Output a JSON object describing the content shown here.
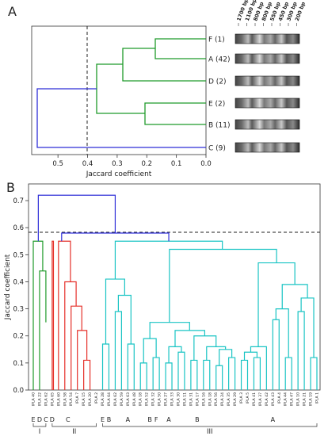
{
  "panels": {
    "a": {
      "label": "A"
    },
    "b": {
      "label": "B"
    }
  },
  "colors": {
    "blue": "#2f2fd8",
    "green": "#1f9a2a",
    "red": "#e5302a",
    "cyan": "#19c4c4"
  },
  "chart_data": [
    {
      "type": "dendrogram",
      "orientation": "horizontal",
      "xlabel": "Jaccard coefficient",
      "xlim": [
        0.57,
        0.0
      ],
      "x_ticks": [
        "0.5",
        "0.4",
        "0.3",
        "0.2",
        "0.1",
        "0.0"
      ],
      "x_tick_values": [
        0.5,
        0.4,
        0.3,
        0.2,
        0.1,
        0.0
      ],
      "threshold": 0.4,
      "leaves": [
        "F (1)",
        "A (42)",
        "D (2)",
        "E (2)",
        "B (11)",
        "C (9)"
      ],
      "merges": [
        {
          "left": 0,
          "right": 1,
          "height": 0.16
        },
        {
          "left": "F-A",
          "right": 2,
          "height": 0.27
        },
        {
          "left": 3,
          "right": 4,
          "height": 0.2
        },
        {
          "left": "FAD",
          "right": "EB",
          "height": 0.36
        },
        {
          "left": "ALL5",
          "right": 5,
          "height": 0.56
        }
      ],
      "gel_markers": [
        "1700 bp",
        "1100 bp",
        "800 bp",
        "800 bp",
        "550 bp",
        "450 bp",
        "300 bp",
        "200 bp"
      ]
    },
    {
      "type": "dendrogram",
      "orientation": "vertical",
      "ylabel": "Jaccard coefficient",
      "ylim": [
        0.0,
        0.75
      ],
      "y_ticks": [
        "0.0",
        "0.1",
        "0.2",
        "0.3",
        "0.4",
        "0.5",
        "0.6",
        "0.7"
      ],
      "y_tick_values": [
        0.0,
        0.1,
        0.2,
        0.3,
        0.4,
        0.5,
        0.6,
        0.7
      ],
      "threshold": 0.58,
      "leaves": [
        "IPLA 40",
        "IPLA 22",
        "IPLA 62",
        "IPLA 65",
        "IPLA 60",
        "IPLA 58",
        "IPLA 54",
        "IPLA 7",
        "IPLA 15",
        "IPLA 20",
        "IPLA 2",
        "IPLA 28",
        "IPLA 64",
        "IPLA 62",
        "IPLA 59",
        "IPLA 63",
        "IPLA 48",
        "IPLA 18",
        "IPLA 52",
        "IPLA 32",
        "IPLA 50",
        "IPLA 27",
        "IPLA 33",
        "IPLA 30",
        "IPLA 11",
        "IPLA 31",
        "IPLA 17",
        "IPLA 16",
        "IPLA 18",
        "IPLA 56",
        "IPLA 24",
        "IPLA 35",
        "IPLA 29",
        "IPLA 3",
        "IPLA 5",
        "IPLA 41",
        "IPLA 37",
        "IPLA 42",
        "IPLA 43",
        "IPLA 4",
        "IPLA 44",
        "IPLA 47",
        "IPLA 10",
        "IPLA 21",
        "IPLA 19",
        "IPLA 1"
      ],
      "group_letters": [
        "E",
        "D",
        "C",
        "D",
        "C",
        "E",
        "B",
        "A",
        "B",
        "F",
        "A",
        "B",
        "A"
      ],
      "clusters": [
        "I",
        "II",
        "III"
      ],
      "top_merge_height": 0.72,
      "subtrees": [
        {
          "name": "I",
          "color": "green",
          "height": 0.55
        },
        {
          "name": "II",
          "color": "red",
          "height": 0.55
        },
        {
          "name": "III",
          "color": "cyan",
          "height": 0.55
        }
      ]
    }
  ]
}
